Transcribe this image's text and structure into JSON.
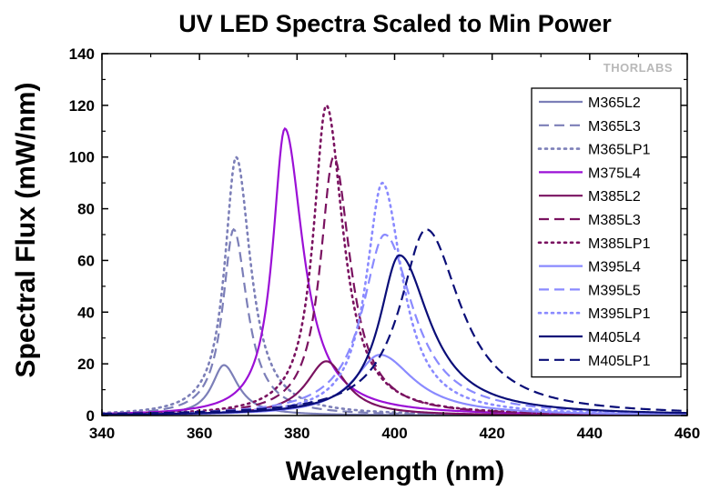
{
  "watermark": "THORLABS",
  "chart_data": {
    "type": "line",
    "title": "UV LED Spectra Scaled to Min Power",
    "xlabel": "Wavelength (nm)",
    "ylabel": "Spectral Flux (mW/nm)",
    "xlim": [
      340,
      460
    ],
    "ylim": [
      0,
      140
    ],
    "xticks": [
      340,
      360,
      380,
      400,
      420,
      440,
      460
    ],
    "yticks": [
      0,
      20,
      40,
      60,
      80,
      100,
      120,
      140
    ],
    "grid": false,
    "legend_position": "top-right",
    "series": [
      {
        "name": "M365L2",
        "color": "#7c7fb8",
        "dash": "solid",
        "peak_nm": 365,
        "peak_mw": 19.5,
        "width_left": 3.0,
        "width_right": 3.6
      },
      {
        "name": "M365L3",
        "color": "#7c7fb8",
        "dash": "dash",
        "peak_nm": 367,
        "peak_mw": 72,
        "width_left": 2.7,
        "width_right": 3.4
      },
      {
        "name": "M365LP1",
        "color": "#7c7fb8",
        "dash": "dot",
        "peak_nm": 367.5,
        "peak_mw": 100,
        "width_left": 2.8,
        "width_right": 3.6
      },
      {
        "name": "M375L4",
        "color": "#9b10d6",
        "dash": "solid",
        "peak_nm": 377.5,
        "peak_mw": 111,
        "width_left": 3.0,
        "width_right": 4.5
      },
      {
        "name": "M385L2",
        "color": "#7a1260",
        "dash": "solid",
        "peak_nm": 386,
        "peak_mw": 21,
        "width_left": 5.0,
        "width_right": 5.0
      },
      {
        "name": "M385L3",
        "color": "#7a1260",
        "dash": "dash",
        "peak_nm": 387.5,
        "peak_mw": 100,
        "width_left": 3.3,
        "width_right": 4.2
      },
      {
        "name": "M385LP1",
        "color": "#7a1260",
        "dash": "dot",
        "peak_nm": 386,
        "peak_mw": 120,
        "width_left": 3.2,
        "width_right": 4.2
      },
      {
        "name": "M395L4",
        "color": "#8a8aff",
        "dash": "solid",
        "peak_nm": 397,
        "peak_mw": 23.5,
        "width_left": 6.5,
        "width_right": 8.5
      },
      {
        "name": "M395L5",
        "color": "#8a8aff",
        "dash": "dash",
        "peak_nm": 398,
        "peak_mw": 70,
        "width_left": 5.5,
        "width_right": 7.0
      },
      {
        "name": "M395LP1",
        "color": "#8a8aff",
        "dash": "dot",
        "peak_nm": 397.5,
        "peak_mw": 90,
        "width_left": 4.0,
        "width_right": 5.0
      },
      {
        "name": "M405L4",
        "color": "#0a0e78",
        "dash": "solid",
        "peak_nm": 401,
        "peak_mw": 62,
        "width_left": 5.0,
        "width_right": 7.5
      },
      {
        "name": "M405LP1",
        "color": "#0a0e78",
        "dash": "dash",
        "peak_nm": 406.5,
        "peak_mw": 72,
        "width_left": 6.5,
        "width_right": 8.5
      }
    ]
  }
}
